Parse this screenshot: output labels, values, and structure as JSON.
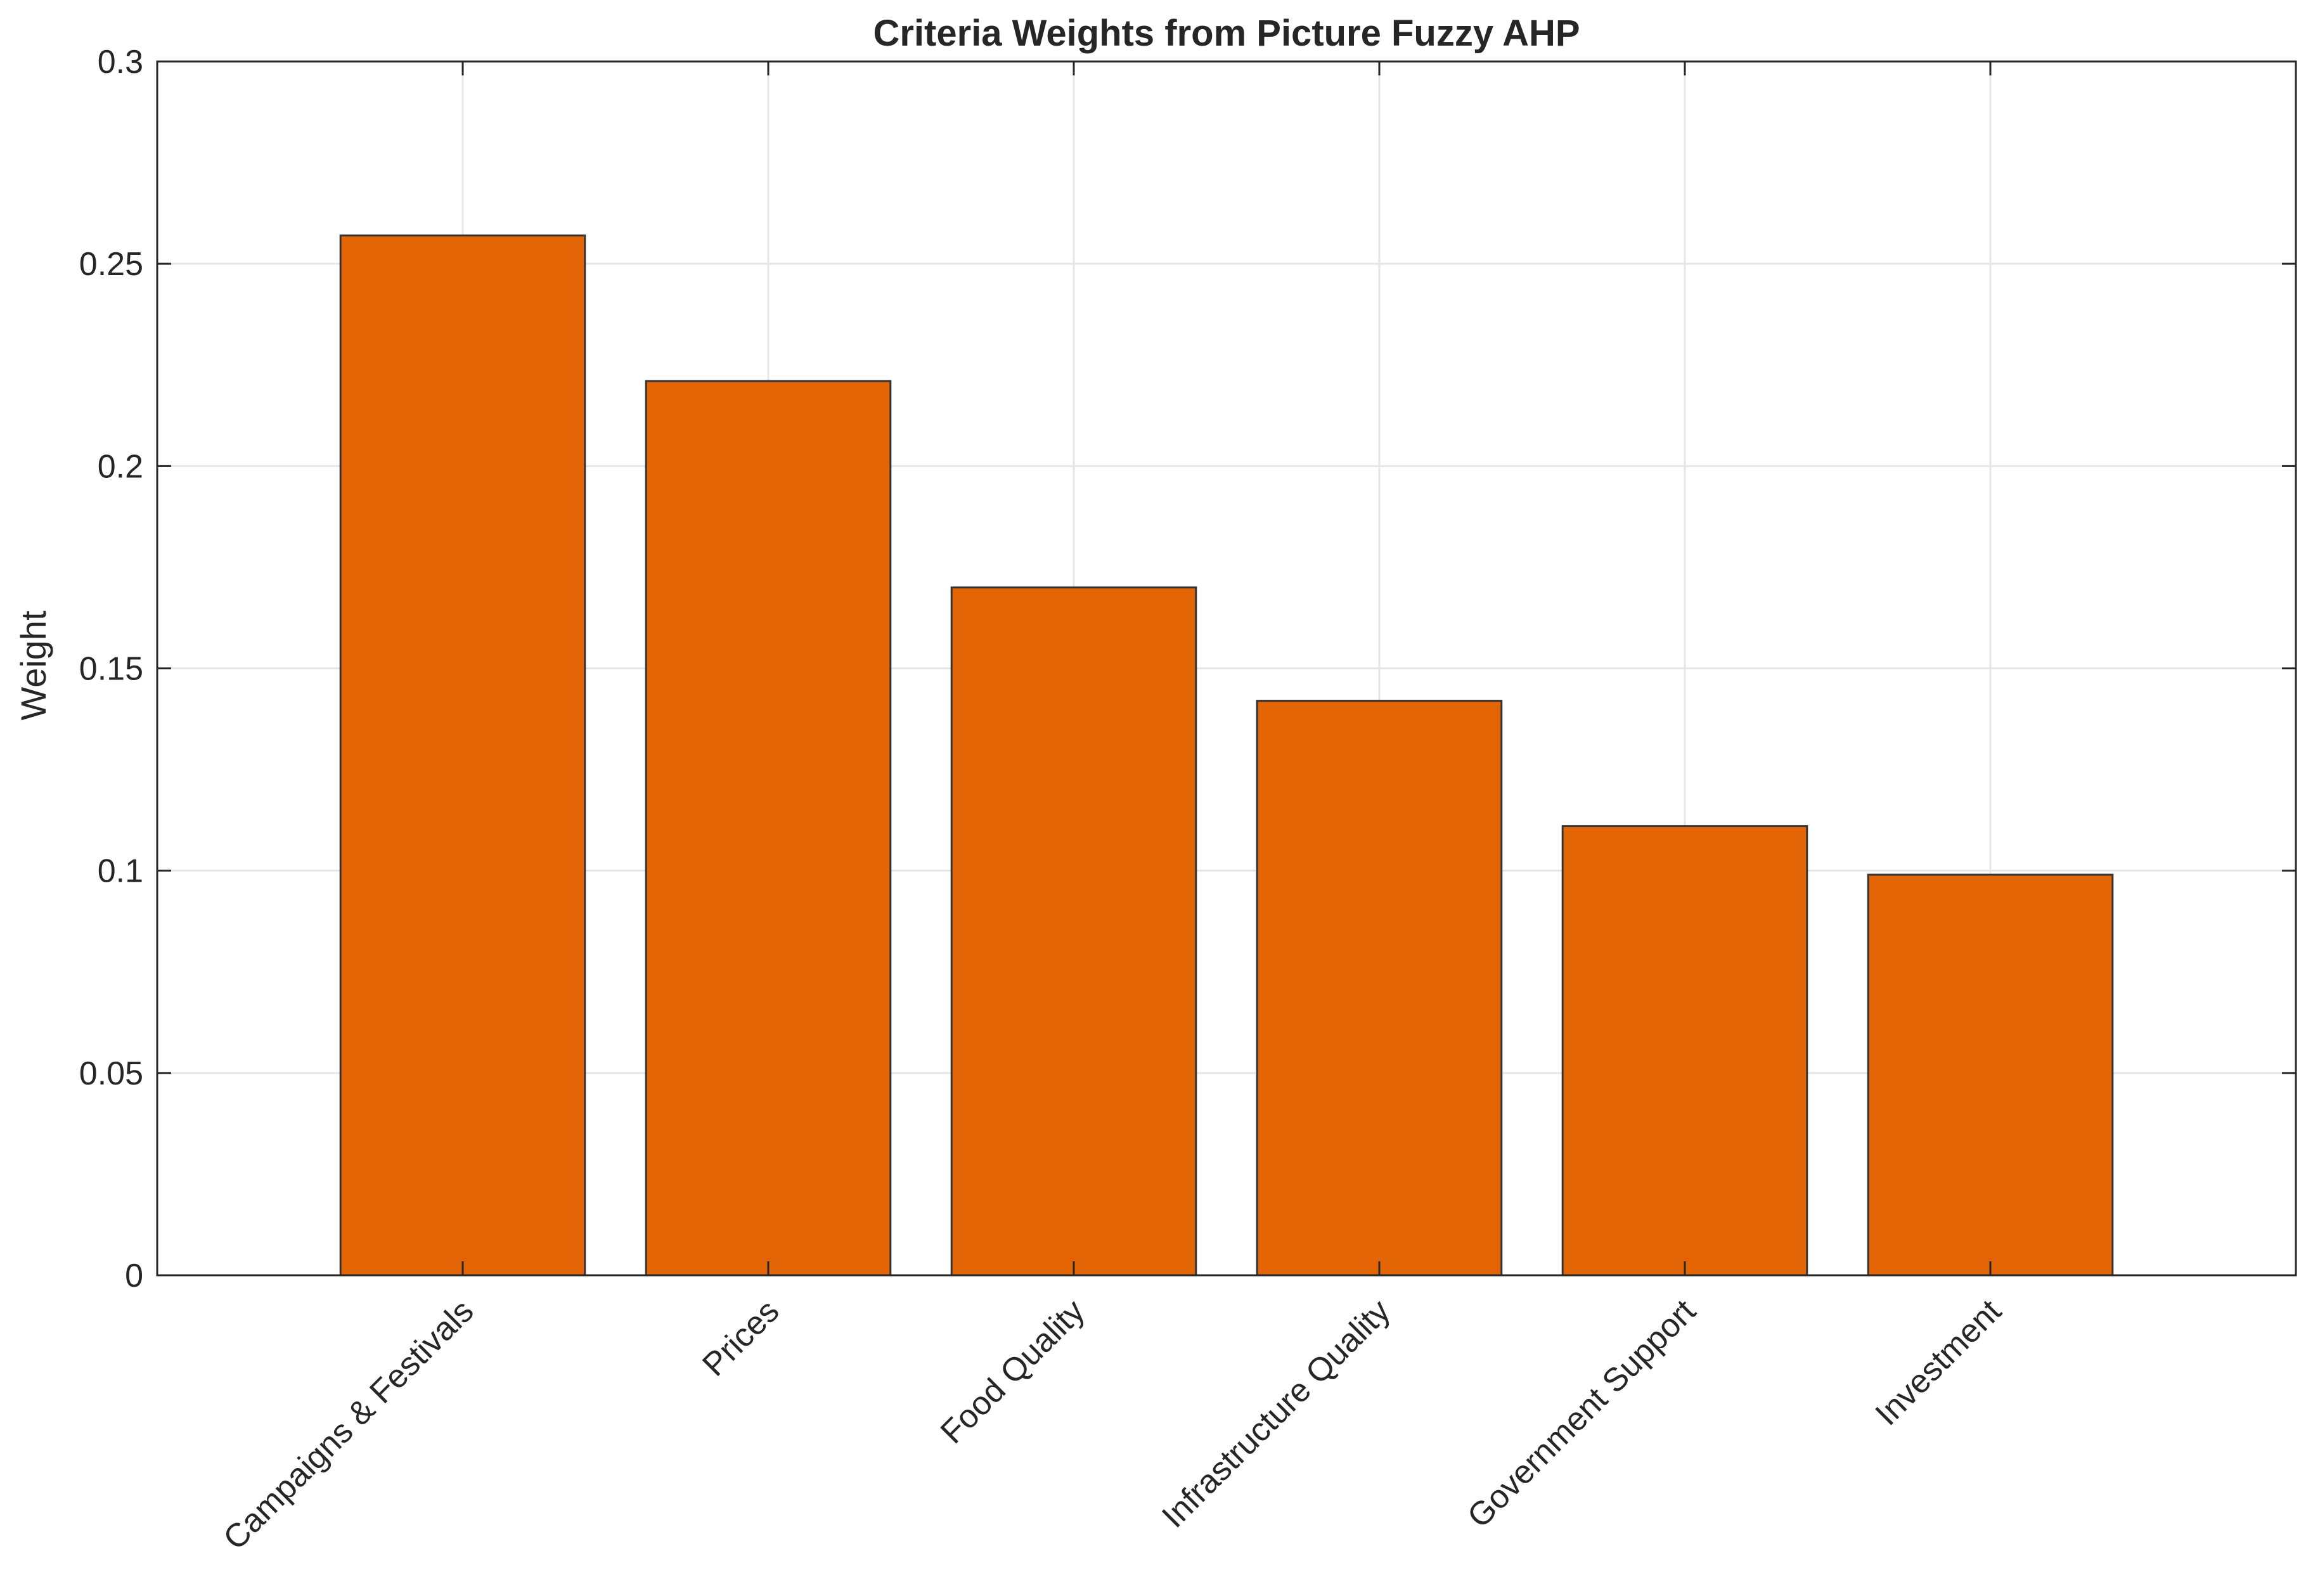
{
  "chart_data": {
    "type": "bar",
    "title": "Criteria Weights from Picture Fuzzy AHP",
    "xlabel": "",
    "ylabel": "Weight",
    "categories": [
      "Campaigns & Festivals",
      "Prices",
      "Food Quality",
      "Infrastructure Quality",
      "Government Support",
      "Investment"
    ],
    "values": [
      0.257,
      0.221,
      0.17,
      0.142,
      0.111,
      0.099
    ],
    "ylim": [
      0,
      0.3
    ],
    "yticks": [
      0,
      0.05,
      0.1,
      0.15,
      0.2,
      0.25,
      0.3
    ],
    "ytick_labels": [
      "0",
      "0.05",
      "0.1",
      "0.15",
      "0.2",
      "0.25",
      "0.3"
    ],
    "grid": true,
    "bar_color": "#E46505",
    "bar_edge_color": "#333333",
    "grid_color": "#E6E6E6",
    "axis_color": "#262626"
  }
}
